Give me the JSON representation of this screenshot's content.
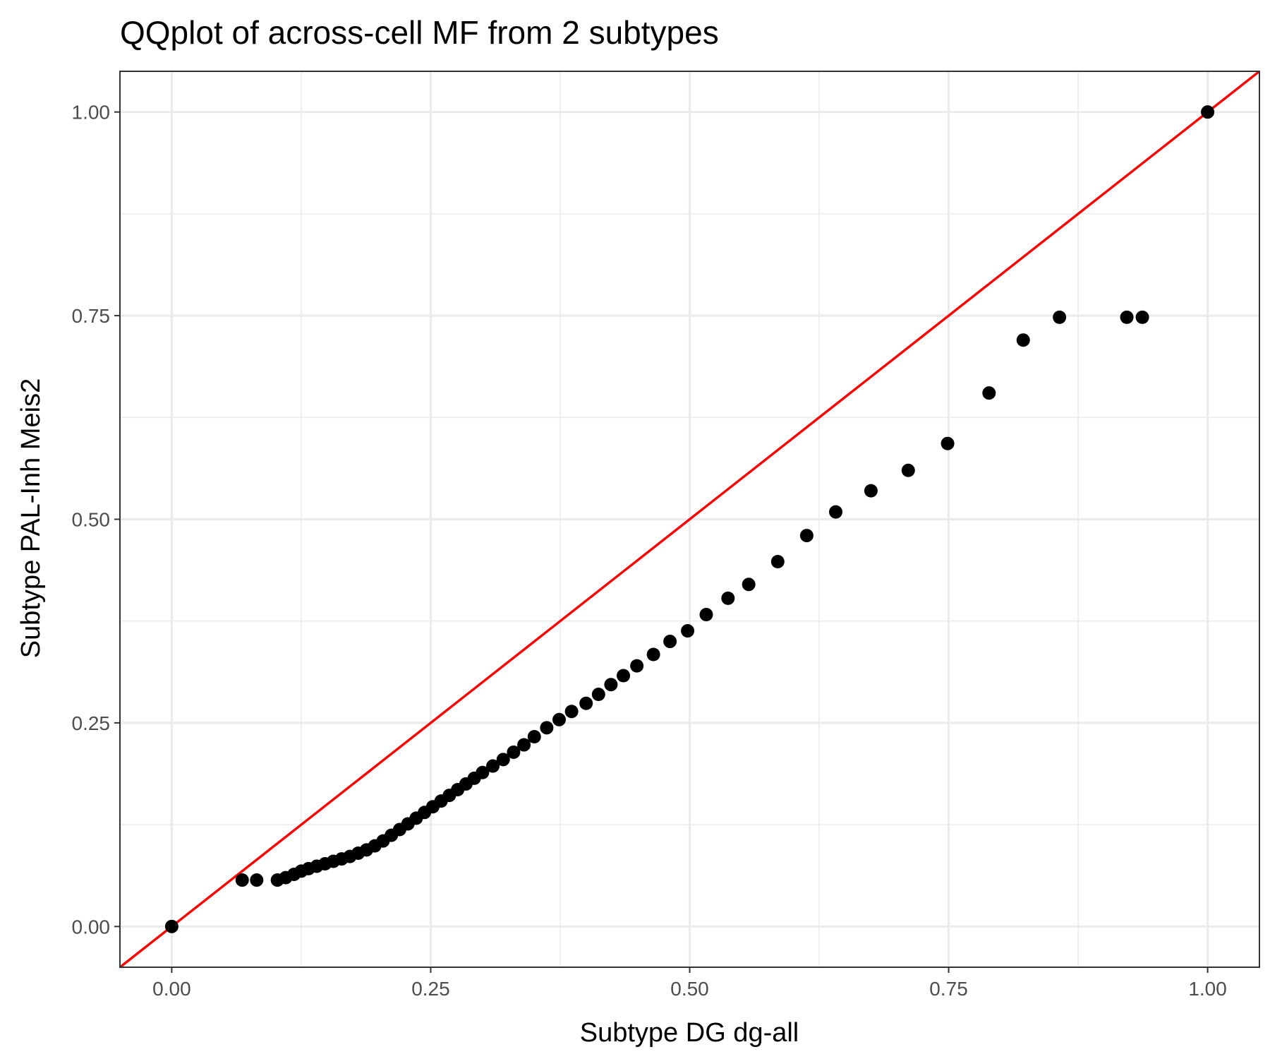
{
  "chart_data": {
    "type": "scatter",
    "title": "QQplot of across-cell MF from 2 subtypes",
    "xlabel": "Subtype DG dg-all",
    "ylabel": "Subtype PAL-Inh Meis2",
    "xlim": [
      -0.05,
      1.05
    ],
    "ylim": [
      -0.05,
      1.05
    ],
    "x_ticks": [
      "0.00",
      "0.25",
      "0.50",
      "0.75",
      "1.00"
    ],
    "y_ticks": [
      "0.00",
      "0.25",
      "0.50",
      "0.75",
      "1.00"
    ],
    "grid": true,
    "legend": "none",
    "reference_line": {
      "slope": 1,
      "intercept": 0,
      "color": "#ff0000"
    },
    "point_color": "#000000",
    "points": [
      [
        0.0,
        0.0
      ],
      [
        0.068,
        0.057
      ],
      [
        0.082,
        0.057
      ],
      [
        0.102,
        0.057
      ],
      [
        0.11,
        0.06
      ],
      [
        0.118,
        0.064
      ],
      [
        0.125,
        0.068
      ],
      [
        0.132,
        0.071
      ],
      [
        0.14,
        0.074
      ],
      [
        0.148,
        0.077
      ],
      [
        0.156,
        0.08
      ],
      [
        0.164,
        0.083
      ],
      [
        0.172,
        0.086
      ],
      [
        0.18,
        0.09
      ],
      [
        0.188,
        0.094
      ],
      [
        0.196,
        0.099
      ],
      [
        0.204,
        0.105
      ],
      [
        0.212,
        0.112
      ],
      [
        0.22,
        0.119
      ],
      [
        0.228,
        0.126
      ],
      [
        0.236,
        0.133
      ],
      [
        0.244,
        0.14
      ],
      [
        0.252,
        0.147
      ],
      [
        0.26,
        0.154
      ],
      [
        0.268,
        0.161
      ],
      [
        0.276,
        0.168
      ],
      [
        0.284,
        0.175
      ],
      [
        0.292,
        0.182
      ],
      [
        0.3,
        0.189
      ],
      [
        0.31,
        0.197
      ],
      [
        0.32,
        0.205
      ],
      [
        0.33,
        0.214
      ],
      [
        0.34,
        0.223
      ],
      [
        0.35,
        0.233
      ],
      [
        0.362,
        0.244
      ],
      [
        0.374,
        0.254
      ],
      [
        0.386,
        0.264
      ],
      [
        0.4,
        0.274
      ],
      [
        0.412,
        0.285
      ],
      [
        0.424,
        0.297
      ],
      [
        0.436,
        0.308
      ],
      [
        0.449,
        0.32
      ],
      [
        0.465,
        0.334
      ],
      [
        0.481,
        0.35
      ],
      [
        0.498,
        0.363
      ],
      [
        0.516,
        0.383
      ],
      [
        0.537,
        0.403
      ],
      [
        0.557,
        0.42
      ],
      [
        0.585,
        0.448
      ],
      [
        0.613,
        0.48
      ],
      [
        0.641,
        0.509
      ],
      [
        0.675,
        0.535
      ],
      [
        0.711,
        0.56
      ],
      [
        0.749,
        0.593
      ],
      [
        0.789,
        0.655
      ],
      [
        0.822,
        0.72
      ],
      [
        0.857,
        0.748
      ],
      [
        0.922,
        0.748
      ],
      [
        0.937,
        0.748
      ],
      [
        1.0,
        1.0
      ]
    ]
  }
}
